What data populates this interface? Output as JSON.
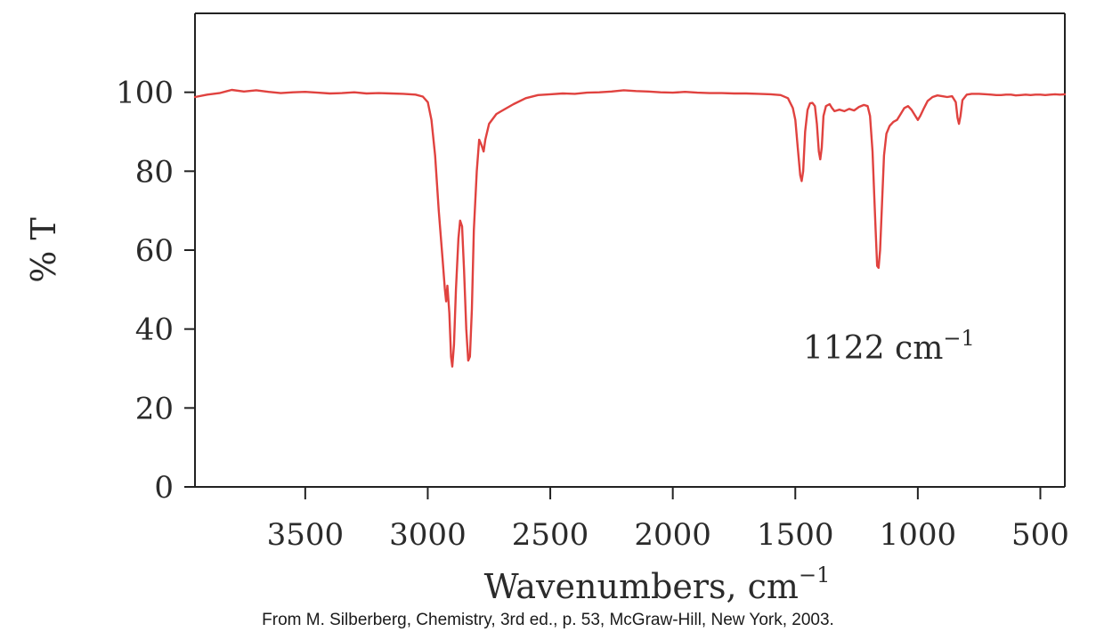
{
  "chart_data": {
    "type": "line",
    "title": "",
    "xlabel": "Wavenumbers, cm",
    "xlabel_exponent": "−1",
    "ylabel": "% T",
    "xlim": [
      3950,
      400
    ],
    "ylim": [
      0,
      120
    ],
    "x_reversed": true,
    "x_ticks": [
      3500,
      3000,
      2500,
      2000,
      1500,
      1000,
      500
    ],
    "y_ticks": [
      0,
      20,
      40,
      60,
      80,
      100
    ],
    "grid": false,
    "line_color": "#e0423f",
    "series": [
      {
        "points": [
          [
            3950,
            98.8
          ],
          [
            3900,
            99.4
          ],
          [
            3850,
            99.8
          ],
          [
            3800,
            100.6
          ],
          [
            3750,
            100.2
          ],
          [
            3700,
            100.5
          ],
          [
            3650,
            100.1
          ],
          [
            3600,
            99.8
          ],
          [
            3550,
            100.0
          ],
          [
            3500,
            100.1
          ],
          [
            3450,
            99.9
          ],
          [
            3400,
            99.7
          ],
          [
            3350,
            99.8
          ],
          [
            3300,
            100.0
          ],
          [
            3250,
            99.7
          ],
          [
            3200,
            99.8
          ],
          [
            3150,
            99.7
          ],
          [
            3100,
            99.6
          ],
          [
            3050,
            99.4
          ],
          [
            3020,
            98.9
          ],
          [
            3000,
            97.5
          ],
          [
            2985,
            93.0
          ],
          [
            2970,
            84.0
          ],
          [
            2955,
            70.0
          ],
          [
            2940,
            58.0
          ],
          [
            2930,
            50.0
          ],
          [
            2925,
            47.0
          ],
          [
            2920,
            51.0
          ],
          [
            2912,
            44.0
          ],
          [
            2905,
            33.0
          ],
          [
            2900,
            30.5
          ],
          [
            2893,
            36.0
          ],
          [
            2885,
            50.0
          ],
          [
            2875,
            63.0
          ],
          [
            2868,
            67.5
          ],
          [
            2860,
            66.0
          ],
          [
            2852,
            55.0
          ],
          [
            2843,
            40.0
          ],
          [
            2835,
            32.0
          ],
          [
            2828,
            33.0
          ],
          [
            2820,
            45.0
          ],
          [
            2812,
            65.0
          ],
          [
            2800,
            80.0
          ],
          [
            2790,
            88.0
          ],
          [
            2780,
            86.5
          ],
          [
            2772,
            85.0
          ],
          [
            2765,
            88.0
          ],
          [
            2750,
            92.0
          ],
          [
            2720,
            94.5
          ],
          [
            2700,
            95.2
          ],
          [
            2650,
            97.0
          ],
          [
            2600,
            98.5
          ],
          [
            2550,
            99.3
          ],
          [
            2500,
            99.5
          ],
          [
            2450,
            99.7
          ],
          [
            2400,
            99.6
          ],
          [
            2350,
            99.9
          ],
          [
            2300,
            100.0
          ],
          [
            2250,
            100.2
          ],
          [
            2200,
            100.5
          ],
          [
            2150,
            100.3
          ],
          [
            2100,
            100.2
          ],
          [
            2050,
            100.0
          ],
          [
            2000,
            99.9
          ],
          [
            1950,
            100.1
          ],
          [
            1900,
            99.9
          ],
          [
            1850,
            99.8
          ],
          [
            1800,
            99.8
          ],
          [
            1750,
            99.7
          ],
          [
            1700,
            99.7
          ],
          [
            1650,
            99.6
          ],
          [
            1600,
            99.5
          ],
          [
            1560,
            99.3
          ],
          [
            1530,
            98.5
          ],
          [
            1510,
            96.0
          ],
          [
            1500,
            93.0
          ],
          [
            1490,
            86.0
          ],
          [
            1480,
            79.0
          ],
          [
            1474,
            77.5
          ],
          [
            1468,
            80.0
          ],
          [
            1460,
            90.0
          ],
          [
            1450,
            95.5
          ],
          [
            1440,
            97.2
          ],
          [
            1430,
            97.3
          ],
          [
            1420,
            96.5
          ],
          [
            1412,
            92.0
          ],
          [
            1404,
            85.0
          ],
          [
            1398,
            83.0
          ],
          [
            1392,
            86.0
          ],
          [
            1385,
            94.0
          ],
          [
            1375,
            96.5
          ],
          [
            1360,
            97.0
          ],
          [
            1350,
            96.0
          ],
          [
            1340,
            95.2
          ],
          [
            1320,
            95.6
          ],
          [
            1300,
            95.2
          ],
          [
            1280,
            95.8
          ],
          [
            1260,
            95.4
          ],
          [
            1240,
            96.3
          ],
          [
            1220,
            96.8
          ],
          [
            1205,
            96.5
          ],
          [
            1195,
            94.0
          ],
          [
            1185,
            85.0
          ],
          [
            1178,
            74.0
          ],
          [
            1172,
            65.0
          ],
          [
            1166,
            56.0
          ],
          [
            1160,
            55.5
          ],
          [
            1154,
            60.0
          ],
          [
            1146,
            72.0
          ],
          [
            1138,
            84.0
          ],
          [
            1128,
            89.5
          ],
          [
            1115,
            91.5
          ],
          [
            1100,
            92.5
          ],
          [
            1085,
            93.0
          ],
          [
            1070,
            94.5
          ],
          [
            1055,
            96.0
          ],
          [
            1040,
            96.5
          ],
          [
            1025,
            95.5
          ],
          [
            1010,
            94.0
          ],
          [
            1000,
            93.0
          ],
          [
            990,
            94.0
          ],
          [
            975,
            96.0
          ],
          [
            960,
            97.8
          ],
          [
            940,
            98.8
          ],
          [
            920,
            99.2
          ],
          [
            900,
            99.0
          ],
          [
            880,
            98.8
          ],
          [
            860,
            99.0
          ],
          [
            845,
            97.5
          ],
          [
            838,
            93.5
          ],
          [
            832,
            92.0
          ],
          [
            826,
            94.0
          ],
          [
            818,
            98.0
          ],
          [
            800,
            99.4
          ],
          [
            780,
            99.6
          ],
          [
            750,
            99.6
          ],
          [
            720,
            99.5
          ],
          [
            700,
            99.4
          ],
          [
            680,
            99.3
          ],
          [
            660,
            99.3
          ],
          [
            640,
            99.4
          ],
          [
            620,
            99.4
          ],
          [
            600,
            99.2
          ],
          [
            580,
            99.3
          ],
          [
            560,
            99.4
          ],
          [
            540,
            99.3
          ],
          [
            520,
            99.4
          ],
          [
            500,
            99.4
          ],
          [
            480,
            99.3
          ],
          [
            460,
            99.4
          ],
          [
            440,
            99.5
          ],
          [
            420,
            99.4
          ],
          [
            400,
            99.5
          ]
        ]
      }
    ],
    "annotation": {
      "text": "1122 cm",
      "exponent": "−1"
    }
  },
  "caption": "From M. Silberberg, Chemistry, 3rd ed., p. 53, McGraw-Hill, New York, 2003."
}
